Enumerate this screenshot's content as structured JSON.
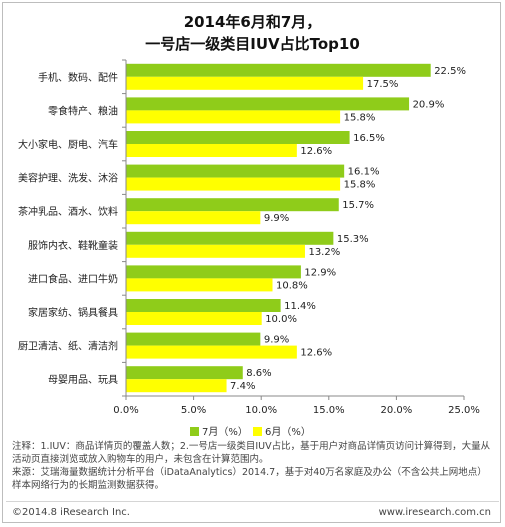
{
  "title_line1": "2014年6月和7月，",
  "title_line2": "一号店一级类目IUV占比Top10",
  "colors": {
    "jul": "#8fcc1a",
    "jun": "#ffff00",
    "axis": "#888888",
    "text": "#222222"
  },
  "legend": {
    "jul": "7月（%）",
    "jun": "6月（%）"
  },
  "chart_data": {
    "type": "bar",
    "orientation": "horizontal",
    "categories": [
      "手机、数码、配件",
      "零食特产、粮油",
      "大小家电、厨电、汽车",
      "美容护理、洗发、沐浴",
      "茶冲乳品、酒水、饮料",
      "服饰内衣、鞋靴童装",
      "进口食品、进口牛奶",
      "家居家纺、锅具餐具",
      "厨卫清洁、纸、清洁剂",
      "母婴用品、玩具"
    ],
    "series": [
      {
        "name": "7月（%）",
        "values": [
          22.5,
          20.9,
          16.5,
          16.1,
          15.7,
          15.3,
          12.9,
          11.4,
          9.9,
          8.6
        ]
      },
      {
        "name": "6月（%）",
        "values": [
          17.5,
          15.8,
          12.6,
          15.8,
          9.9,
          13.2,
          10.8,
          10.0,
          12.6,
          7.4
        ]
      }
    ],
    "data_labels_jul": [
      "22.5%",
      "20.9%",
      "16.5%",
      "16.1%",
      "15.7%",
      "15.3%",
      "12.9%",
      "11.4%",
      "9.9%",
      "8.6%"
    ],
    "data_labels_jun": [
      "17.5%",
      "15.8%",
      "12.6%",
      "15.8%",
      "9.9%",
      "13.2%",
      "10.8%",
      "10.0%",
      "12.6%",
      "7.4%"
    ],
    "xlim": [
      0,
      25
    ],
    "xticks": [
      0,
      5,
      10,
      15,
      20,
      25
    ],
    "xtick_labels": [
      "0.0%",
      "5.0%",
      "10.0%",
      "15.0%",
      "20.0%",
      "25.0%"
    ],
    "legend_position": "bottom"
  },
  "notes": {
    "line1": "注释：1.IUV：商品详情页的覆盖人数；2.一号店一级类目IUV占比，基于用户对商品详情页访问计算得到，大量从活动页直接浏览或放入购物车的用户，未包含在计算范围内。",
    "line2": "来源：艾瑞海量数据统计分析平台（iDataAnalytics）2014.7，基于对40万名家庭及办公（不含公共上网地点）样本网络行为的长期监测数据获得。"
  },
  "footer": {
    "copyright": "©2014.8 iResearch Inc.",
    "website": "www.iresearch.com.cn"
  }
}
